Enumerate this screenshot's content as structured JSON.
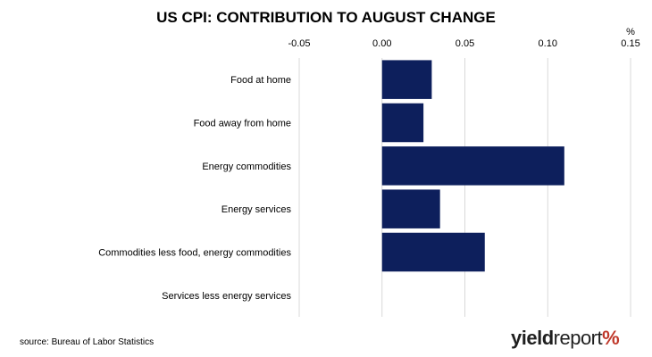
{
  "chart_data": {
    "type": "bar",
    "orientation": "horizontal",
    "title": "US CPI: CONTRIBUTION TO AUGUST CHANGE",
    "unit_label": "%",
    "categories": [
      "Food at home",
      "Food away from home",
      "Energy commodities",
      "Energy services",
      "Commodities less food, energy commodities",
      "Services less energy services"
    ],
    "values": [
      0.03,
      0.025,
      0.11,
      0.035,
      0.062,
      0.0
    ],
    "xlim": [
      -0.05,
      0.15
    ],
    "xticks": [
      "-0.05",
      "0.00",
      "0.05",
      "0.10",
      "0.15"
    ],
    "xtick_values": [
      -0.05,
      0.0,
      0.05,
      0.1,
      0.15
    ],
    "axis_position": "top",
    "grid": "vertical",
    "bar_color": "#0d1f5c",
    "grid_color": "#d9d9d9"
  },
  "source": "source: Bureau of Labor Statistics",
  "logo": {
    "part_bold": "yield",
    "part_light": "report",
    "symbol": "%",
    "symbol_color": "#c0392b"
  }
}
